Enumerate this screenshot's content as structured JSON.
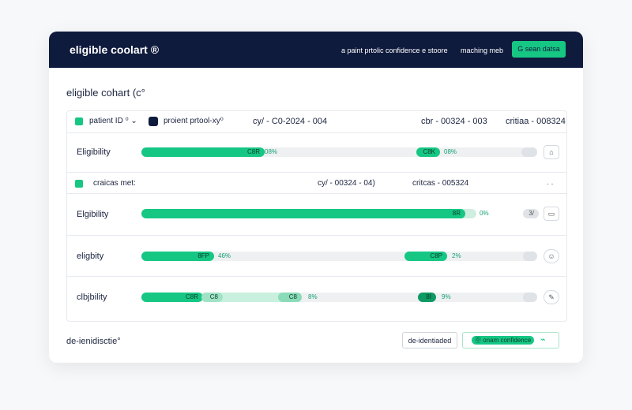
{
  "header": {
    "title": "eligible coolart ®",
    "subtitle": "a paint prtolic confidence e stoore",
    "link": "maching meb",
    "button": "G sean datsa"
  },
  "panel": {
    "title": "eligible cohart (c°",
    "filter_row": {
      "patient": "patient ID ⁰  ⌄",
      "protocol": "proient prtool-xy⁰",
      "cy": "cy/ - C0-2024 - 004",
      "cbr": "cbr - 00324 - 003",
      "critias": "critiaa - 008324"
    },
    "rows": [
      {
        "label": "Eligibility",
        "bar1": "C8R",
        "pct1": "08%",
        "bar2": "C8K",
        "pct2": "08%"
      },
      {
        "criteria": "craicas met:",
        "cy": "cy/ - 00324 - 04)",
        "critcas": "critcas - 005324",
        "dots": "- -"
      },
      {
        "label": "Elgibility",
        "bar1": "8R",
        "pct1": "0%",
        "pill": "3/"
      },
      {
        "label": "eligbity",
        "bar1": "8FP",
        "pct1": "46%",
        "bar2": "C8P",
        "pct2": "2%"
      },
      {
        "label": "clbjbility",
        "bar1": "C8R",
        "bar1b": "C8",
        "bar1c": "C8",
        "pct1": "8%",
        "bar2": "8I",
        "pct2": "9%"
      }
    ]
  },
  "footer": {
    "label": "de-ienidisctie°",
    "button1": "de-identiaded",
    "button2": "⓪ onam confidence",
    "check": "⌁"
  }
}
